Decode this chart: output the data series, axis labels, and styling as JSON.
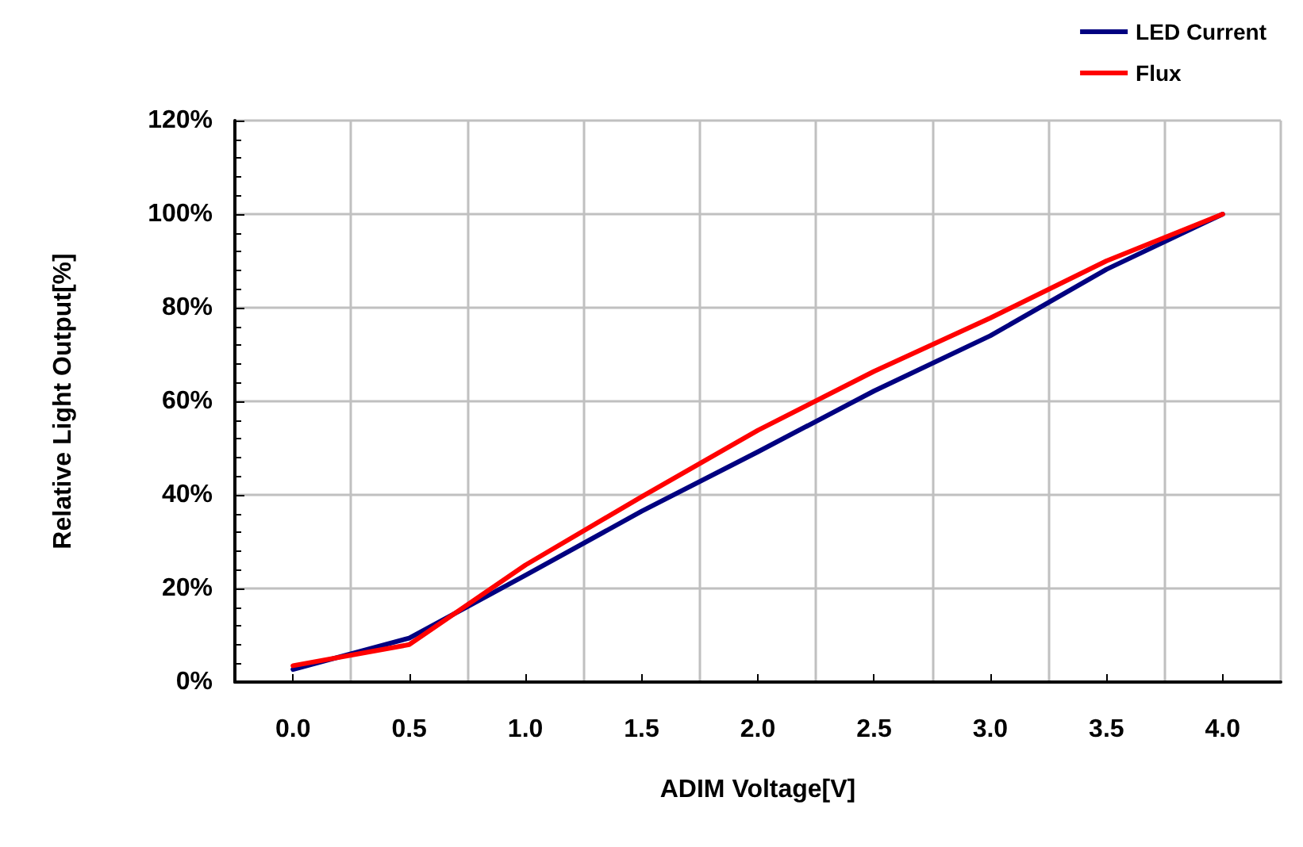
{
  "chart_data": {
    "type": "line",
    "xlabel": "ADIM Voltage[V]",
    "ylabel": "Relative Light Output[%]",
    "categories": [
      "0.0",
      "0.5",
      "1.0",
      "1.5",
      "2.0",
      "2.5",
      "3.0",
      "3.5",
      "4.0"
    ],
    "series": [
      {
        "name": "LED Current",
        "color": "#000080",
        "values": [
          2.7,
          9.4,
          22.8,
          36.5,
          49.2,
          62.2,
          74,
          88.2,
          100
        ]
      },
      {
        "name": "Flux",
        "color": "#ff0000",
        "values": [
          3.5,
          8,
          25,
          39.6,
          53.8,
          66.4,
          77.8,
          90,
          100
        ]
      }
    ],
    "ylim": [
      0,
      120
    ],
    "yticks": [
      {
        "value": 0,
        "label": "0%"
      },
      {
        "value": 20,
        "label": "20%"
      },
      {
        "value": 40,
        "label": "40%"
      },
      {
        "value": 60,
        "label": "60%"
      },
      {
        "value": 80,
        "label": "80%"
      },
      {
        "value": 100,
        "label": "100%"
      },
      {
        "value": 120,
        "label": "120%"
      }
    ],
    "grid": true,
    "legend": "top right",
    "marker": "none",
    "line_style": "solid"
  }
}
